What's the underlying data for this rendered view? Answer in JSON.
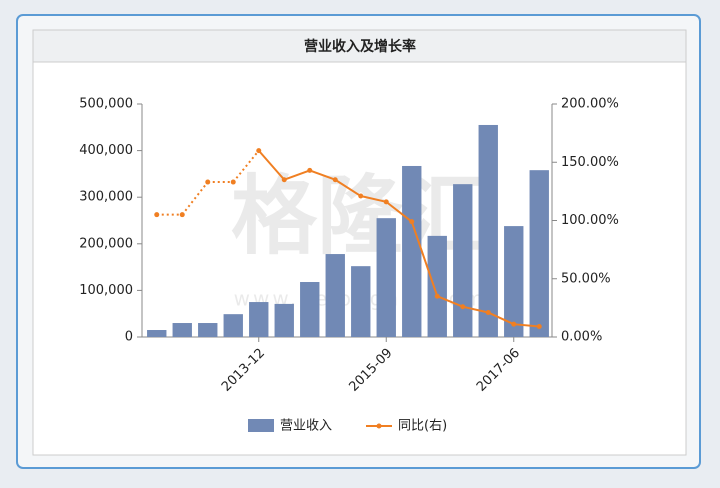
{
  "chart_data": {
    "type": "bar_line",
    "title": "营业收入及增长率",
    "watermark": "格隆汇",
    "watermark_url": "www.gelonghui.com",
    "categories": [
      null,
      null,
      null,
      null,
      "2013-12",
      null,
      null,
      null,
      null,
      "2015-09",
      null,
      null,
      null,
      null,
      "2017-06",
      null
    ],
    "series": [
      {
        "name": "营业收入",
        "type": "bar",
        "color": "#7189b5",
        "values": [
          15000,
          30000,
          30000,
          49000,
          75000,
          71000,
          118000,
          178000,
          152000,
          255000,
          367000,
          217000,
          328000,
          455000,
          238000,
          358000
        ]
      },
      {
        "name": "同比(右)",
        "type": "line",
        "axis": "y2",
        "color": "#f07f22",
        "dashed_until_index": 4,
        "values": [
          105,
          105,
          133,
          133,
          160,
          135,
          143,
          135,
          121,
          116,
          99,
          35,
          26,
          21,
          11,
          9
        ]
      }
    ],
    "ylim": [
      0,
      500000
    ],
    "yticks": [
      0,
      {
        "value": 100000,
        "label": "100,000"
      },
      {
        "value": 200000,
        "label": "200,000"
      },
      {
        "value": 300000,
        "label": "300,000"
      },
      {
        "value": 400000,
        "label": "400,000"
      },
      {
        "value": 500000,
        "label": "500,000"
      }
    ],
    "y2lim": [
      0,
      200
    ],
    "y2ticks": [
      {
        "value": 0,
        "label": "0.00%"
      },
      {
        "value": 50,
        "label": "50.00%"
      },
      {
        "value": 100,
        "label": "100.00%"
      },
      {
        "value": 150,
        "label": "150.00%"
      },
      {
        "value": 200,
        "label": "200.00%"
      }
    ]
  }
}
